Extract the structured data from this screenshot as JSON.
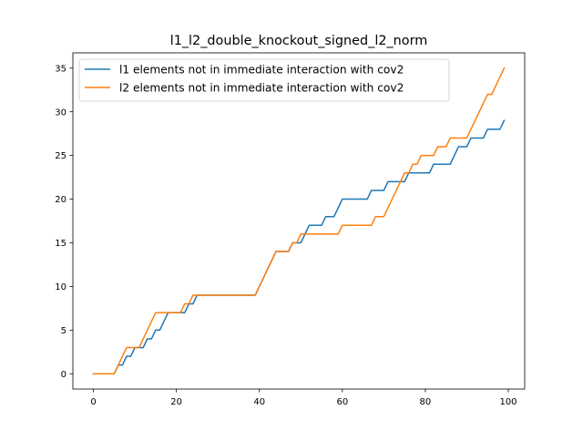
{
  "chart_data": {
    "type": "line",
    "title": "l1_l2_double_knockout_signed_l2_norm",
    "xlabel": "",
    "ylabel": "",
    "xlim": [
      -4.95,
      103.95
    ],
    "ylim": [
      -1.75,
      36.75
    ],
    "xticks": [
      0,
      20,
      40,
      60,
      80,
      100
    ],
    "yticks": [
      0,
      5,
      10,
      15,
      20,
      25,
      30,
      35
    ],
    "grid": false,
    "legend_position": "top-left",
    "series": [
      {
        "name": "l1 elements not in immediate interaction with cov2",
        "color": "#1f77b4",
        "x": [
          0,
          1,
          2,
          3,
          4,
          5,
          6,
          7,
          8,
          9,
          10,
          11,
          12,
          13,
          14,
          15,
          16,
          17,
          18,
          19,
          20,
          21,
          22,
          23,
          24,
          25,
          26,
          27,
          28,
          29,
          30,
          31,
          32,
          33,
          34,
          35,
          36,
          37,
          38,
          39,
          40,
          41,
          42,
          43,
          44,
          45,
          46,
          47,
          48,
          49,
          50,
          51,
          52,
          53,
          54,
          55,
          56,
          57,
          58,
          59,
          60,
          61,
          62,
          63,
          64,
          65,
          66,
          67,
          68,
          69,
          70,
          71,
          72,
          73,
          74,
          75,
          76,
          77,
          78,
          79,
          80,
          81,
          82,
          83,
          84,
          85,
          86,
          87,
          88,
          89,
          90,
          91,
          92,
          93,
          94,
          95,
          96,
          97,
          98,
          99
        ],
        "values": [
          0,
          0,
          0,
          0,
          0,
          0,
          1,
          1,
          2,
          2,
          3,
          3,
          3,
          4,
          4,
          5,
          5,
          6,
          7,
          7,
          7,
          7,
          7,
          8,
          8,
          9,
          9,
          9,
          9,
          9,
          9,
          9,
          9,
          9,
          9,
          9,
          9,
          9,
          9,
          9,
          10,
          11,
          12,
          13,
          14,
          14,
          14,
          14,
          15,
          15,
          15,
          16,
          17,
          17,
          17,
          17,
          18,
          18,
          18,
          19,
          20,
          20,
          20,
          20,
          20,
          20,
          20,
          21,
          21,
          21,
          21,
          22,
          22,
          22,
          22,
          22,
          23,
          23,
          23,
          23,
          23,
          23,
          24,
          24,
          24,
          24,
          24,
          25,
          26,
          26,
          26,
          27,
          27,
          27,
          27,
          28,
          28,
          28,
          28,
          29
        ]
      },
      {
        "name": "l2 elements not in immediate interaction with cov2",
        "color": "#ff7f0e",
        "x": [
          0,
          1,
          2,
          3,
          4,
          5,
          6,
          7,
          8,
          9,
          10,
          11,
          12,
          13,
          14,
          15,
          16,
          17,
          18,
          19,
          20,
          21,
          22,
          23,
          24,
          25,
          26,
          27,
          28,
          29,
          30,
          31,
          32,
          33,
          34,
          35,
          36,
          37,
          38,
          39,
          40,
          41,
          42,
          43,
          44,
          45,
          46,
          47,
          48,
          49,
          50,
          51,
          52,
          53,
          54,
          55,
          56,
          57,
          58,
          59,
          60,
          61,
          62,
          63,
          64,
          65,
          66,
          67,
          68,
          69,
          70,
          71,
          72,
          73,
          74,
          75,
          76,
          77,
          78,
          79,
          80,
          81,
          82,
          83,
          84,
          85,
          86,
          87,
          88,
          89,
          90,
          91,
          92,
          93,
          94,
          95,
          96,
          97,
          98,
          99
        ],
        "values": [
          0,
          0,
          0,
          0,
          0,
          0,
          1,
          2,
          3,
          3,
          3,
          3,
          4,
          5,
          6,
          7,
          7,
          7,
          7,
          7,
          7,
          7,
          8,
          8,
          9,
          9,
          9,
          9,
          9,
          9,
          9,
          9,
          9,
          9,
          9,
          9,
          9,
          9,
          9,
          9,
          10,
          11,
          12,
          13,
          14,
          14,
          14,
          14,
          15,
          15,
          16,
          16,
          16,
          16,
          16,
          16,
          16,
          16,
          16,
          16,
          17,
          17,
          17,
          17,
          17,
          17,
          17,
          17,
          18,
          18,
          18,
          19,
          20,
          21,
          22,
          23,
          23,
          24,
          24,
          25,
          25,
          25,
          25,
          26,
          26,
          26,
          27,
          27,
          27,
          27,
          27,
          28,
          29,
          30,
          31,
          32,
          32,
          33,
          34,
          35
        ]
      }
    ]
  }
}
